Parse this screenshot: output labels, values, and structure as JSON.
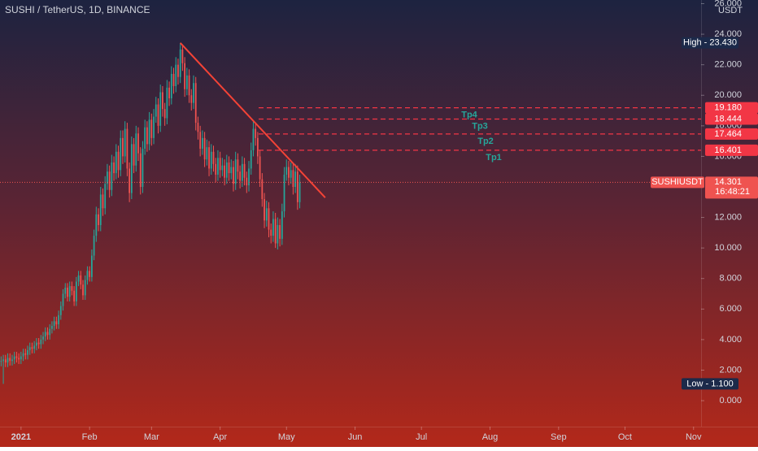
{
  "chart_data": {
    "type": "candlestick",
    "title": "SUSHI / TetherUS, 1D, BINANCE",
    "unit": "USDT",
    "up_color": "#26a69a",
    "down_color": "#ef5350",
    "x": [
      -9,
      -8,
      -7,
      -6,
      -5,
      -4,
      -3,
      -2,
      -1,
      0,
      1,
      2,
      3,
      4,
      5,
      6,
      7,
      8,
      9,
      10,
      11,
      12,
      13,
      14,
      15,
      16,
      17,
      18,
      19,
      20,
      21,
      22,
      23,
      24,
      25,
      26,
      27,
      28,
      29,
      30,
      31,
      32,
      33,
      34,
      35,
      36,
      37,
      38,
      39,
      40,
      41,
      42,
      43,
      44,
      45,
      46,
      47,
      48,
      49,
      50,
      51,
      52,
      53,
      54,
      55,
      56,
      57,
      58,
      59,
      60,
      61,
      62,
      63,
      64,
      65,
      66,
      67,
      68,
      69,
      70,
      71,
      72,
      73,
      74,
      75,
      76,
      77,
      78,
      79,
      80,
      81,
      82,
      83,
      84,
      85,
      86,
      87,
      88,
      89,
      90,
      91,
      92,
      93,
      94,
      95,
      96,
      97,
      98,
      99,
      100,
      101,
      102,
      103,
      104,
      105,
      106,
      107,
      108,
      109,
      110,
      111,
      112,
      113,
      114,
      115,
      116,
      117,
      118,
      119,
      120,
      121,
      122,
      123,
      124,
      125,
      126
    ],
    "open": [
      2.55,
      2.6,
      2.7,
      2.5,
      2.8,
      2.6,
      2.7,
      2.9,
      2.8,
      2.7,
      2.9,
      3.1,
      3.0,
      3.3,
      3.5,
      3.4,
      3.6,
      3.8,
      3.7,
      4.0,
      4.2,
      4.5,
      4.3,
      4.7,
      4.9,
      5.2,
      5.0,
      5.6,
      6.2,
      7.0,
      7.4,
      6.8,
      7.5,
      7.2,
      6.5,
      7.8,
      8.2,
      7.6,
      6.9,
      7.9,
      8.5,
      8.1,
      9.5,
      10.8,
      12.2,
      11.5,
      13.5,
      12.6,
      14.2,
      15.0,
      13.8,
      15.6,
      14.9,
      16.3,
      15.1,
      17.2,
      16.0,
      17.8,
      15.2,
      13.6,
      16.8,
      15.4,
      17.5,
      16.2,
      14.0,
      16.5,
      17.9,
      16.8,
      18.4,
      17.2,
      18.6,
      19.4,
      18.0,
      20.2,
      19.1,
      18.5,
      20.5,
      19.8,
      21.4,
      20.6,
      22.0,
      21.2,
      23.0,
      22.1,
      20.4,
      21.3,
      20.0,
      19.5,
      20.8,
      18.2,
      17.6,
      16.5,
      17.2,
      15.8,
      16.6,
      15.2,
      16.3,
      15.5,
      14.8,
      15.9,
      15.1,
      15.4,
      14.6,
      15.6,
      14.9,
      15.3,
      14.2,
      15.8,
      15.0,
      14.4,
      15.5,
      14.6,
      14.1,
      15.2,
      16.4,
      17.8,
      17.2,
      16.0,
      14.5,
      13.2,
      11.8,
      12.6,
      11.2,
      10.8,
      11.9,
      10.3,
      11.5,
      10.6,
      12.4,
      14.8,
      15.3,
      14.6,
      15.1,
      14.0,
      15.0,
      13.0
    ],
    "high": [
      2.9,
      3.0,
      3.0,
      3.1,
      3.1,
      3.0,
      3.2,
      3.2,
      3.1,
      3.2,
      3.4,
      3.4,
      3.6,
      3.8,
      3.8,
      3.9,
      4.1,
      4.1,
      4.3,
      4.5,
      4.8,
      4.8,
      5.0,
      5.2,
      5.5,
      5.5,
      5.9,
      6.5,
      7.3,
      7.7,
      7.7,
      7.8,
      7.8,
      7.5,
      8.1,
      8.5,
      8.5,
      7.9,
      8.2,
      8.8,
      8.8,
      9.9,
      11.2,
      12.7,
      12.6,
      14.0,
      13.9,
      14.7,
      15.5,
      15.4,
      16.1,
      16.0,
      16.8,
      16.7,
      17.7,
      17.7,
      18.3,
      18.2,
      15.6,
      17.3,
      17.2,
      18.0,
      17.9,
      16.6,
      17.0,
      18.4,
      18.3,
      18.9,
      18.8,
      19.1,
      19.9,
      19.8,
      20.7,
      20.6,
      19.5,
      21.0,
      20.9,
      21.9,
      21.8,
      22.5,
      22.4,
      23.43,
      23.3,
      22.5,
      21.8,
      21.7,
      20.4,
      21.3,
      21.2,
      18.6,
      18.0,
      17.7,
      17.6,
      17.1,
      17.0,
      16.8,
      16.7,
      15.9,
      16.4,
      16.3,
      15.9,
      15.8,
      16.1,
      16.0,
      15.8,
      15.7,
      16.3,
      16.2,
      15.4,
      16.0,
      15.9,
      15.0,
      15.7,
      16.9,
      18.3,
      18.2,
      17.6,
      16.4,
      14.9,
      13.6,
      13.1,
      13.0,
      11.6,
      12.4,
      12.3,
      12.0,
      11.9,
      12.9,
      15.3,
      15.8,
      15.7,
      15.6,
      15.5,
      15.5,
      15.4,
      14.8
    ],
    "low": [
      2.25,
      1.1,
      2.2,
      2.2,
      2.3,
      2.3,
      2.4,
      2.5,
      2.4,
      2.4,
      2.6,
      2.7,
      2.7,
      3.0,
      3.1,
      3.1,
      3.3,
      3.4,
      3.4,
      3.7,
      3.9,
      4.0,
      4.0,
      4.4,
      4.6,
      4.7,
      4.7,
      5.3,
      5.9,
      6.7,
      6.5,
      6.5,
      6.9,
      6.2,
      6.2,
      7.5,
      7.3,
      6.6,
      6.6,
      7.6,
      7.8,
      7.8,
      9.2,
      10.4,
      11.1,
      11.1,
      12.1,
      12.2,
      13.8,
      13.3,
      13.4,
      14.4,
      14.5,
      14.6,
      14.7,
      15.5,
      15.6,
      14.7,
      13.0,
      13.2,
      14.9,
      15.0,
      15.7,
      13.5,
      13.6,
      16.1,
      16.3,
      16.4,
      16.7,
      16.8,
      18.2,
      17.5,
      17.6,
      18.6,
      18.0,
      18.1,
      19.3,
      19.4,
      20.1,
      20.2,
      20.7,
      20.8,
      21.6,
      19.9,
      20.0,
      19.5,
      19.0,
      19.1,
      17.7,
      17.1,
      16.0,
      16.1,
      15.3,
      15.4,
      14.7,
      14.8,
      15.0,
      14.3,
      14.4,
      14.6,
      14.7,
      14.1,
      14.2,
      14.4,
      14.5,
      13.7,
      13.8,
      14.5,
      13.9,
      14.0,
      14.1,
      13.6,
      13.7,
      14.8,
      16.0,
      16.7,
      15.5,
      14.0,
      12.7,
      11.3,
      11.4,
      10.7,
      10.3,
      10.4,
      10.0,
      9.9,
      10.1,
      10.2,
      12.0,
      14.4,
      14.1,
      14.2,
      13.5,
      13.6,
      12.5,
      12.6
    ],
    "close": [
      2.6,
      2.7,
      2.5,
      2.8,
      2.6,
      2.7,
      2.9,
      2.8,
      2.7,
      2.9,
      3.1,
      3.0,
      3.3,
      3.5,
      3.4,
      3.6,
      3.8,
      3.7,
      4.0,
      4.2,
      4.5,
      4.3,
      4.7,
      4.9,
      5.2,
      5.0,
      5.6,
      6.2,
      7.0,
      7.4,
      6.8,
      7.5,
      7.2,
      6.5,
      7.8,
      8.2,
      7.6,
      6.9,
      7.9,
      8.5,
      8.1,
      9.5,
      10.8,
      12.2,
      11.5,
      13.5,
      12.6,
      14.2,
      15.0,
      13.8,
      15.6,
      14.9,
      16.3,
      15.1,
      17.2,
      16.0,
      17.8,
      15.2,
      13.6,
      16.8,
      15.4,
      17.5,
      16.2,
      14.0,
      16.5,
      17.9,
      16.8,
      18.4,
      17.2,
      18.6,
      19.4,
      18.0,
      20.2,
      19.1,
      18.5,
      20.5,
      19.8,
      21.4,
      20.6,
      22.0,
      21.2,
      23.0,
      22.1,
      20.4,
      21.3,
      20.0,
      19.5,
      20.8,
      18.2,
      17.6,
      16.5,
      17.2,
      15.8,
      16.6,
      15.2,
      16.3,
      15.5,
      14.8,
      15.9,
      15.1,
      15.4,
      14.6,
      15.6,
      14.9,
      15.3,
      14.2,
      15.8,
      15.0,
      14.4,
      15.5,
      14.6,
      14.1,
      15.2,
      16.4,
      17.8,
      17.2,
      16.0,
      14.5,
      13.2,
      11.8,
      12.6,
      11.2,
      10.8,
      11.9,
      10.3,
      11.5,
      10.6,
      12.4,
      14.8,
      15.3,
      14.6,
      15.1,
      14.0,
      15.0,
      13.0,
      14.301
    ],
    "xlim": [
      -9.5,
      307.4
    ],
    "ylim": [
      -1.7,
      26.24
    ],
    "xticks": [
      {
        "value": 0,
        "label": "2021"
      },
      {
        "value": 31,
        "label": "Feb"
      },
      {
        "value": 59,
        "label": "Mar"
      },
      {
        "value": 90,
        "label": "Apr"
      },
      {
        "value": 120,
        "label": "May"
      },
      {
        "value": 151,
        "label": "Jun"
      },
      {
        "value": 181,
        "label": "Jul"
      },
      {
        "value": 212,
        "label": "Aug"
      },
      {
        "value": 243,
        "label": "Sep"
      },
      {
        "value": 273,
        "label": "Oct"
      },
      {
        "value": 304,
        "label": "Nov"
      }
    ],
    "yticks": [
      {
        "value": 0,
        "label": "0.000"
      },
      {
        "value": 2,
        "label": "2.000"
      },
      {
        "value": 4,
        "label": "4.000"
      },
      {
        "value": 6,
        "label": "6.000"
      },
      {
        "value": 8,
        "label": "8.000"
      },
      {
        "value": 10,
        "label": "10.000"
      },
      {
        "value": 12,
        "label": "12.000"
      },
      {
        "value": 14,
        "label": "14.000"
      },
      {
        "value": 16,
        "label": "16.000"
      },
      {
        "value": 18,
        "label": "18.000"
      },
      {
        "value": 20,
        "label": "20.000"
      },
      {
        "value": 22,
        "label": "22.000"
      },
      {
        "value": 24,
        "label": "24.000"
      },
      {
        "value": 26,
        "label": "26.000"
      }
    ],
    "high_marker": {
      "value": 23.43,
      "label": "High - 23.430"
    },
    "low_marker": {
      "value": 1.1,
      "label": "Low - 1.100"
    },
    "levels": [
      {
        "name": "Tp4",
        "value": 19.18,
        "label": "19.180"
      },
      {
        "name": "Tp3",
        "value": 18.444,
        "label": "18.444"
      },
      {
        "name": "Tp2",
        "value": 17.464,
        "label": "17.464"
      },
      {
        "name": "Tp1",
        "value": 16.401,
        "label": "16.401"
      }
    ],
    "level_color": "#f23645",
    "target_color": "#26a69a",
    "last": {
      "symbol": "SUSHIUSDT",
      "value": 14.301,
      "timer": "16:48:21"
    },
    "trendline": {
      "x": [
        72,
        137.5
      ],
      "y": [
        23.43,
        13.3
      ],
      "color": "#f44336"
    }
  }
}
